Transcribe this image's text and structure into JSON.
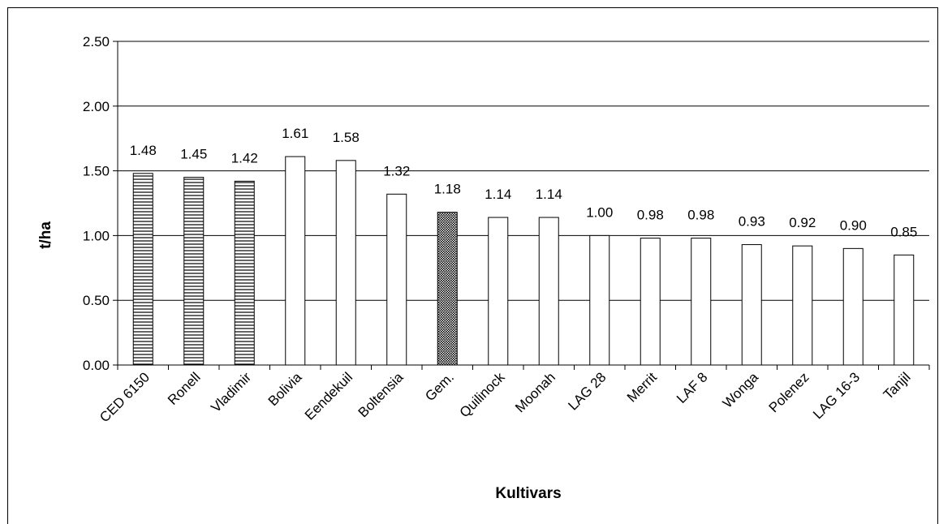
{
  "chart_data": {
    "type": "bar",
    "xlabel": "Kultivars",
    "ylabel": "t/ha",
    "ylim": [
      0,
      2.5
    ],
    "yticks": [
      "0.00",
      "0.50",
      "1.00",
      "1.50",
      "2.00",
      "2.50"
    ],
    "grid": true,
    "categories": [
      "CED 6150",
      "Ronell",
      "Vladimir",
      "Bolivia",
      "Eendekuil",
      "Boltensia",
      "Gem.",
      "Quilinock",
      "Moonah",
      "LAG 28",
      "Merrit",
      "LAF 8",
      "Wonga",
      "Polenez",
      "LAG 16-3",
      "Tanjil"
    ],
    "values": [
      1.48,
      1.45,
      1.42,
      1.61,
      1.58,
      1.32,
      1.18,
      1.14,
      1.14,
      1.0,
      0.98,
      0.98,
      0.93,
      0.92,
      0.9,
      0.85
    ],
    "value_labels": [
      "1.48",
      "1.45",
      "1.42",
      "1.61",
      "1.58",
      "1.32",
      "1.18",
      "1.14",
      "1.14",
      "1.00",
      "0.98",
      "0.98",
      "0.93",
      "0.92",
      "0.90",
      "0.85"
    ],
    "bar_styles": [
      "hstripe",
      "hstripe",
      "hstripe",
      "plain",
      "plain",
      "plain",
      "dotted",
      "plain",
      "plain",
      "plain",
      "plain",
      "plain",
      "plain",
      "plain",
      "plain",
      "plain"
    ]
  }
}
